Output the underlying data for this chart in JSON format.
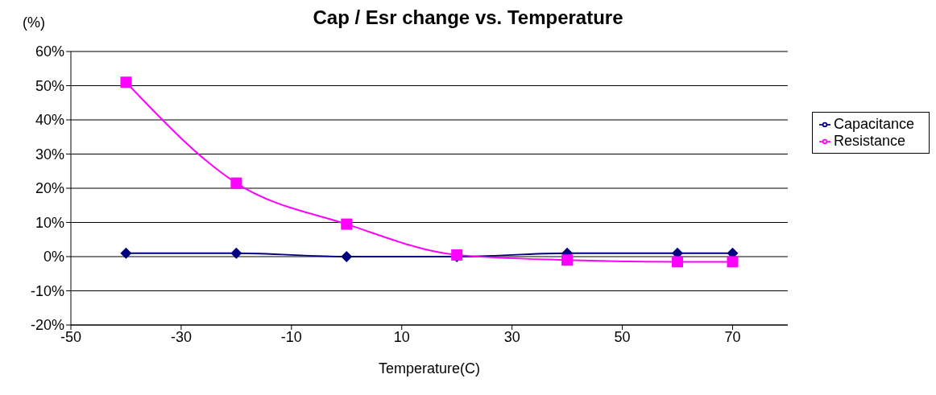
{
  "chart_data": {
    "type": "line",
    "title": "Cap / Esr change vs. Temperature",
    "xlabel": "Temperature(C)",
    "ylabel": "(%)",
    "x": [
      -40,
      -20,
      0,
      20,
      40,
      60,
      70
    ],
    "series": [
      {
        "name": "Capacitance",
        "color": "#000080",
        "marker": "diamond",
        "values": [
          1,
          1,
          0,
          0,
          1,
          1,
          1
        ]
      },
      {
        "name": "Resistance",
        "color": "#ff00ff",
        "marker": "square",
        "values": [
          51,
          21.5,
          9.5,
          0.5,
          -1,
          -1.5,
          -1.5
        ]
      }
    ],
    "xlim": [
      -50,
      80
    ],
    "xticks": [
      -50,
      -30,
      -10,
      10,
      30,
      50,
      70
    ],
    "ylim": [
      -20,
      60
    ],
    "yticks": [
      {
        "value": -20,
        "label": "-20%"
      },
      {
        "value": -10,
        "label": "-10%"
      },
      {
        "value": 0,
        "label": "0%"
      },
      {
        "value": 10,
        "label": "10%"
      },
      {
        "value": 20,
        "label": "20%"
      },
      {
        "value": 30,
        "label": "30%"
      },
      {
        "value": 40,
        "label": "40%"
      },
      {
        "value": 50,
        "label": "50%"
      },
      {
        "value": 60,
        "label": "60%"
      }
    ],
    "grid": "y",
    "legend": "right"
  }
}
